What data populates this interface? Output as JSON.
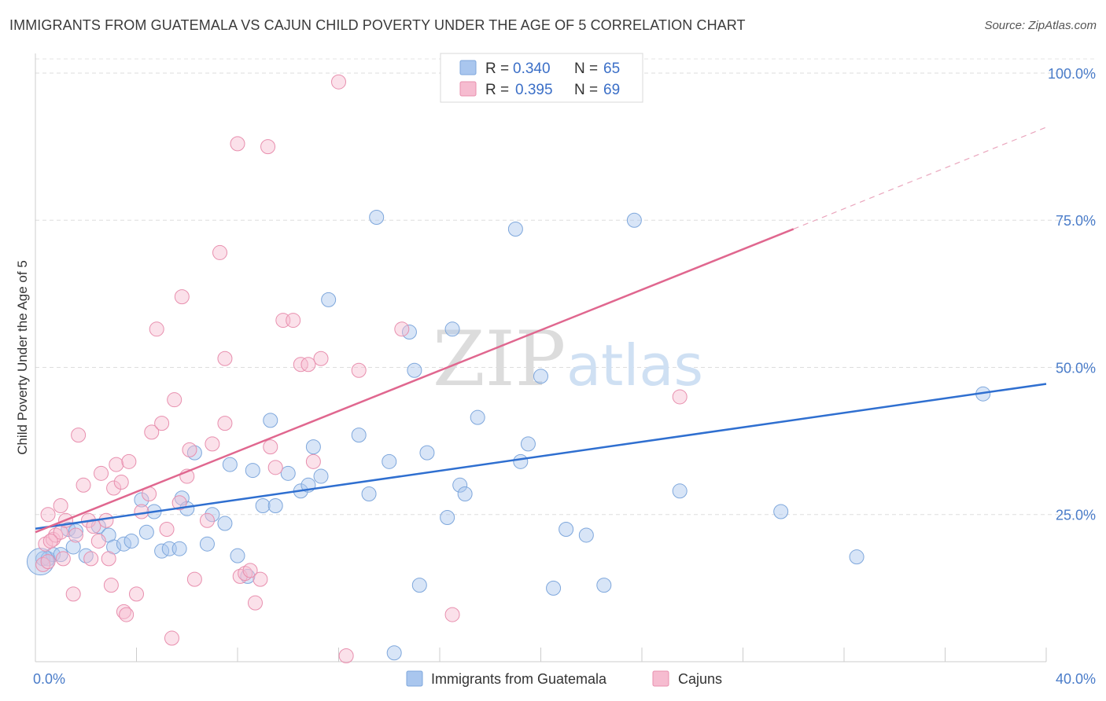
{
  "title": "IMMIGRANTS FROM GUATEMALA VS CAJUN CHILD POVERTY UNDER THE AGE OF 5 CORRELATION CHART",
  "source": "Source: ZipAtlas.com",
  "watermark": {
    "zip": "ZIP",
    "atlas": "atlas"
  },
  "legend": {
    "rows": [
      {
        "r_label": "R =",
        "r_value": "0.340",
        "n_label": "N =",
        "n_value": "65",
        "color": "#a9c6ee",
        "stroke": "#7ea7dc"
      },
      {
        "r_label": "R =",
        "r_value": "0.395",
        "n_label": "N =",
        "n_value": "69",
        "color": "#f6bcd0",
        "stroke": "#e88fae"
      }
    ]
  },
  "bottom_legend": [
    {
      "label": "Immigrants from Guatemala",
      "color": "#a9c6ee",
      "stroke": "#7ea7dc"
    },
    {
      "label": "Cajuns",
      "color": "#f6bcd0",
      "stroke": "#e88fae"
    }
  ],
  "chart_data": {
    "type": "scatter",
    "title": "IMMIGRANTS FROM GUATEMALA VS CAJUN CHILD POVERTY UNDER THE AGE OF 5 CORRELATION CHART",
    "xlabel": "",
    "ylabel": "Child Poverty Under the Age of 5",
    "xlim": [
      0,
      40
    ],
    "ylim": [
      0,
      102
    ],
    "x_tick_labels": [
      "0.0%",
      "40.0%"
    ],
    "y_ticks": [
      25,
      50,
      75,
      100
    ],
    "y_tick_labels": [
      "25.0%",
      "50.0%",
      "75.0%",
      "100.0%"
    ],
    "colors": {
      "guatemala_line": "#2f6fd0",
      "cajun_line": "#e0678f"
    },
    "series": [
      {
        "name": "Immigrants from Guatemala",
        "trend": {
          "x0": 0,
          "y0": 22.6,
          "x1": 40,
          "y1": 47.2
        },
        "points": [
          [
            0.3,
            17.5
          ],
          [
            0.5,
            17.5
          ],
          [
            0.7,
            18.2
          ],
          [
            1.0,
            18.2
          ],
          [
            1.5,
            19.5
          ],
          [
            1.3,
            22.5
          ],
          [
            1.6,
            22.2
          ],
          [
            2.0,
            18.0
          ],
          [
            2.5,
            23.0
          ],
          [
            2.9,
            21.5
          ],
          [
            3.1,
            19.5
          ],
          [
            3.5,
            20.0
          ],
          [
            3.8,
            20.5
          ],
          [
            4.2,
            27.5
          ],
          [
            4.4,
            22.0
          ],
          [
            4.7,
            25.5
          ],
          [
            5.0,
            18.8
          ],
          [
            5.3,
            19.2
          ],
          [
            5.7,
            19.2
          ],
          [
            5.8,
            27.8
          ],
          [
            6.0,
            26.0
          ],
          [
            6.3,
            35.5
          ],
          [
            6.8,
            20.0
          ],
          [
            7.0,
            25.0
          ],
          [
            7.5,
            23.5
          ],
          [
            7.7,
            33.5
          ],
          [
            8.0,
            18.0
          ],
          [
            8.4,
            14.5
          ],
          [
            8.6,
            32.5
          ],
          [
            9.0,
            26.5
          ],
          [
            9.5,
            26.5
          ],
          [
            9.3,
            41.0
          ],
          [
            10.0,
            32.0
          ],
          [
            10.5,
            29.0
          ],
          [
            10.8,
            30.0
          ],
          [
            11.0,
            36.5
          ],
          [
            11.3,
            31.5
          ],
          [
            11.6,
            61.5
          ],
          [
            12.8,
            38.5
          ],
          [
            13.2,
            28.5
          ],
          [
            13.5,
            75.5
          ],
          [
            14.0,
            34.0
          ],
          [
            14.2,
            1.5
          ],
          [
            14.8,
            56.0
          ],
          [
            15.0,
            49.5
          ],
          [
            15.2,
            13.0
          ],
          [
            15.5,
            35.5
          ],
          [
            16.3,
            24.5
          ],
          [
            16.5,
            56.5
          ],
          [
            16.8,
            30.0
          ],
          [
            17.0,
            28.5
          ],
          [
            17.5,
            41.5
          ],
          [
            19.0,
            73.5
          ],
          [
            19.2,
            34.0
          ],
          [
            19.5,
            37.0
          ],
          [
            20.0,
            48.5
          ],
          [
            20.5,
            12.5
          ],
          [
            21.0,
            22.5
          ],
          [
            21.8,
            21.5
          ],
          [
            22.5,
            13.0
          ],
          [
            23.7,
            75.0
          ],
          [
            25.5,
            29.0
          ],
          [
            29.5,
            25.5
          ],
          [
            32.5,
            17.8
          ],
          [
            37.5,
            45.5
          ]
        ]
      },
      {
        "name": "Cajuns",
        "trend": {
          "x0": 0,
          "y0": 22.0,
          "x1": 30,
          "y1": 73.5
        },
        "trend_dashed_to": {
          "x": 40,
          "y": 90.8
        },
        "points": [
          [
            0.3,
            16.5
          ],
          [
            0.4,
            20.0
          ],
          [
            0.5,
            17.0
          ],
          [
            0.5,
            25.0
          ],
          [
            0.7,
            20.8
          ],
          [
            0.8,
            21.5
          ],
          [
            1.0,
            22.0
          ],
          [
            1.0,
            26.5
          ],
          [
            1.1,
            17.5
          ],
          [
            1.2,
            24.0
          ],
          [
            1.5,
            11.5
          ],
          [
            1.6,
            21.5
          ],
          [
            1.7,
            38.5
          ],
          [
            1.9,
            30.0
          ],
          [
            2.1,
            24.0
          ],
          [
            2.2,
            17.5
          ],
          [
            2.3,
            23.0
          ],
          [
            2.5,
            20.5
          ],
          [
            2.6,
            32.0
          ],
          [
            2.8,
            24.0
          ],
          [
            2.9,
            17.5
          ],
          [
            3.0,
            13.0
          ],
          [
            3.1,
            29.5
          ],
          [
            3.2,
            33.5
          ],
          [
            3.4,
            30.5
          ],
          [
            3.5,
            8.5
          ],
          [
            3.6,
            8.0
          ],
          [
            3.7,
            34.0
          ],
          [
            4.0,
            11.5
          ],
          [
            4.2,
            25.5
          ],
          [
            4.5,
            28.5
          ],
          [
            4.6,
            39.0
          ],
          [
            4.8,
            56.5
          ],
          [
            5.0,
            40.5
          ],
          [
            5.2,
            22.5
          ],
          [
            5.4,
            4.0
          ],
          [
            5.5,
            44.5
          ],
          [
            5.7,
            27.0
          ],
          [
            5.8,
            62.0
          ],
          [
            6.0,
            31.5
          ],
          [
            6.1,
            36.0
          ],
          [
            6.3,
            14.0
          ],
          [
            6.8,
            24.0
          ],
          [
            7.0,
            37.0
          ],
          [
            7.3,
            69.5
          ],
          [
            7.5,
            51.5
          ],
          [
            7.5,
            40.5
          ],
          [
            8.0,
            88.0
          ],
          [
            8.1,
            14.5
          ],
          [
            8.3,
            15.0
          ],
          [
            8.5,
            15.5
          ],
          [
            8.7,
            10.0
          ],
          [
            8.9,
            14.0
          ],
          [
            9.2,
            87.5
          ],
          [
            9.3,
            36.5
          ],
          [
            9.5,
            33.0
          ],
          [
            9.8,
            58.0
          ],
          [
            10.2,
            58.0
          ],
          [
            10.5,
            50.5
          ],
          [
            10.8,
            50.5
          ],
          [
            11.0,
            34.0
          ],
          [
            11.3,
            51.5
          ],
          [
            12.0,
            98.5
          ],
          [
            12.3,
            1.0
          ],
          [
            12.8,
            49.5
          ],
          [
            14.5,
            56.5
          ],
          [
            16.5,
            8.0
          ],
          [
            25.5,
            45.0
          ],
          [
            0.6,
            20.5
          ]
        ]
      }
    ]
  }
}
